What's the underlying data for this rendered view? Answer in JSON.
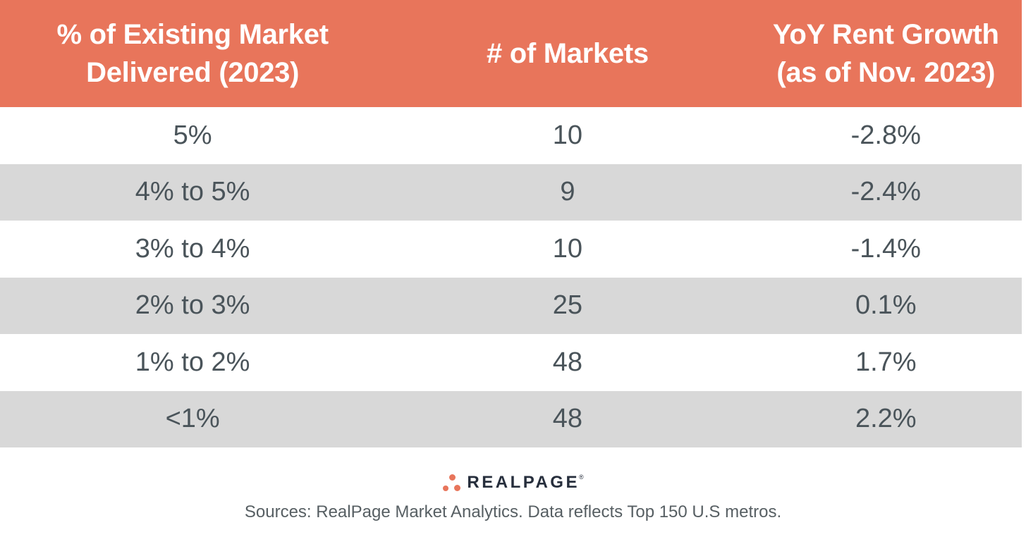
{
  "header": {
    "col1_line1": "% of Existing Market",
    "col1_line2": "Delivered (2023)",
    "col2": "# of Markets",
    "col3_line1": "YoY Rent Growth",
    "col3_line2": "(as of Nov. 2023)"
  },
  "chart_data": {
    "type": "table",
    "columns": [
      "% of Existing Market Delivered (2023)",
      "# of Markets",
      "YoY Rent Growth (as of Nov. 2023)"
    ],
    "rows": [
      [
        "5%",
        "10",
        "-2.8%"
      ],
      [
        "4% to 5%",
        "9",
        "-2.4%"
      ],
      [
        "3% to 4%",
        "10",
        "-1.4%"
      ],
      [
        "2% to 3%",
        "25",
        "0.1%"
      ],
      [
        "1% to 2%",
        "48",
        "1.7%"
      ],
      [
        "<1%",
        "48",
        "2.2%"
      ]
    ],
    "source_note": "Sources: RealPage Market Analytics. Data reflects Top 150 U.S metros.",
    "layout_hints": {
      "header_bg": "#e8755b",
      "row_striping": [
        "#ffffff",
        "#d8d8d8"
      ],
      "text_align": "center"
    }
  },
  "footer": {
    "logo_text": "REALPAGE",
    "logo_mark": "®",
    "sources": "Sources: RealPage Market Analytics. Data reflects Top 150 U.S metros."
  },
  "colors": {
    "header_bg": "#e8755b",
    "header_text": "#ffffff",
    "row_alt_bg": "#d8d8d8",
    "body_text": "#4a545a",
    "logo_dark": "#262e3c",
    "logo_orange": "#e8755b",
    "source_text": "#575f63"
  }
}
